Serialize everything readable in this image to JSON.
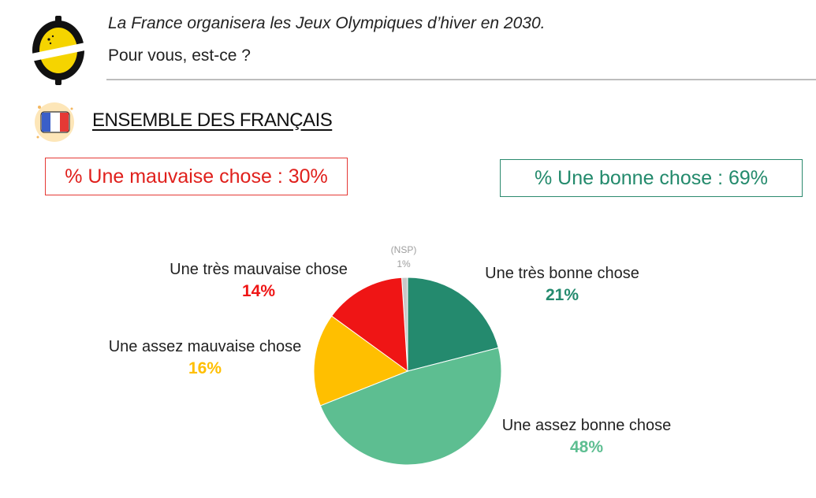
{
  "question": {
    "line1": "La France organisera les Jeux Olympiques d’hiver en 2030.",
    "line2": "Pour vous, est-ce ?"
  },
  "section": {
    "title": "ENSEMBLE DES FRANÇAIS"
  },
  "summary": {
    "bad": "% Une mauvaise chose : 30%",
    "good": "% Une bonne chose : 69%"
  },
  "chart_data": {
    "type": "pie",
    "slices": [
      {
        "label": "(NSP)",
        "value": 1,
        "display": "1%",
        "color": "#c8c8c8"
      },
      {
        "label": "Une très bonne chose",
        "value": 21,
        "display": "21%",
        "color": "#248a6e"
      },
      {
        "label": "Une assez bonne chose",
        "value": 48,
        "display": "48%",
        "color": "#5dbe91"
      },
      {
        "label": "Une assez mauvaise chose",
        "value": 16,
        "display": "16%",
        "color": "#ffbf00"
      },
      {
        "label": "Une très mauvaise chose",
        "value": 14,
        "display": "14%",
        "color": "#ef1515"
      }
    ]
  },
  "colors": {
    "bad_box": "#e53935",
    "good_box": "#2b8a6e",
    "logo_yellow": "#f5d400"
  },
  "icons": {
    "logo": "lemon-logo-icon",
    "flag": "france-flag-icon"
  }
}
